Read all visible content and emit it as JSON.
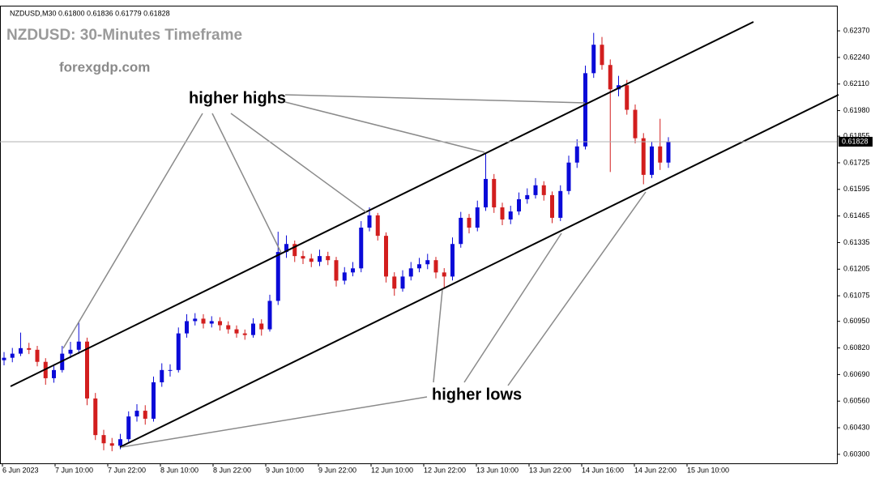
{
  "chart_data": {
    "type": "candlestick",
    "header": "NZDUSD,M30  0.61800 0.61836 0.61779 0.61828",
    "title": "NZDUSD: 30-Minutes Timeframe",
    "subtitle": "forexgdp.com",
    "annotations": [
      "higher highs",
      "higher lows"
    ],
    "up_color": "#0a0ad8",
    "down_color": "#d21e1e",
    "last_price": 0.61828,
    "ylim": [
      0.60256,
      0.62489
    ],
    "yticks": [
      {
        "value": 0.6237,
        "label": "0.62370"
      },
      {
        "value": 0.6224,
        "label": "0.62240"
      },
      {
        "value": 0.6211,
        "label": "0.62110"
      },
      {
        "value": 0.6198,
        "label": "0.61980"
      },
      0.61855,
      0.61725,
      0.61595,
      0.61465,
      0.61335,
      0.61205,
      0.61075,
      {
        "value": 0.6095,
        "label": "0.60950"
      },
      {
        "value": 0.6082,
        "label": "0.60820"
      },
      {
        "value": 0.6069,
        "label": "0.60690"
      },
      {
        "value": 0.6056,
        "label": "0.60560"
      },
      {
        "value": 0.6043,
        "label": "0.60430"
      },
      {
        "value": 0.603,
        "label": "0.60300"
      }
    ],
    "xtick_labels": [
      "6 Jun 2023",
      "7 Jun 10:00",
      "7 Jun 22:00",
      "8 Jun 10:00",
      "8 Jun 22:00",
      "9 Jun 10:00",
      "9 Jun 22:00",
      "12 Jun 10:00",
      "12 Jun 22:00",
      "13 Jun 10:00",
      "13 Jun 22:00",
      "14 Jun 16:00",
      "14 Jun 22:00",
      "15 Jun 10:00"
    ],
    "open": [
      0.6076,
      0.60772,
      0.60792,
      0.60819,
      0.60811,
      0.60752,
      0.60672,
      0.60712,
      0.60792,
      0.60811,
      0.60851,
      0.60573,
      0.60394,
      0.60354,
      0.60342,
      0.60374,
      0.60485,
      0.60513,
      0.60474,
      0.60652,
      0.60712,
      0.60712,
      0.60891,
      0.60951,
      0.60963,
      0.60939,
      0.60951,
      0.60931,
      0.60911,
      0.60891,
      0.60883,
      0.60939,
      0.60911,
      0.6105,
      0.61289,
      0.61328,
      0.61269,
      0.61257,
      0.61241,
      0.61269,
      0.61249,
      0.61149,
      0.61189,
      0.61209,
      0.61408,
      0.61468,
      0.61368,
      0.61169,
      0.6111,
      0.61169,
      0.61209,
      0.61229,
      0.61249,
      0.61189,
      0.61169,
      0.61328,
      0.61456,
      0.61408,
      0.61507,
      0.61646,
      0.61507,
      0.61448,
      0.61487,
      0.61547,
      0.61567,
      0.61615,
      0.61567,
      0.61456,
      0.61587,
      0.61726,
      0.61805,
      0.62163,
      0.62302,
      0.62203,
      0.62084,
      0.62104,
      0.61984,
      0.61845,
      0.61666,
      0.61805,
      0.61726
    ],
    "high": [
      0.608,
      0.6082,
      0.60895,
      0.60845,
      0.6083,
      0.6077,
      0.6074,
      0.6083,
      0.6085,
      0.60945,
      0.6087,
      0.606,
      0.6042,
      0.6038,
      0.604,
      0.6051,
      0.60545,
      0.6054,
      0.6068,
      0.60745,
      0.6074,
      0.6092,
      0.60985,
      0.6099,
      0.60985,
      0.60975,
      0.6097,
      0.6095,
      0.6093,
      0.6091,
      0.60965,
      0.6096,
      0.6108,
      0.61388,
      0.6137,
      0.61345,
      0.61295,
      0.6128,
      0.613,
      0.6129,
      0.61265,
      0.61215,
      0.6124,
      0.6144,
      0.61507,
      0.6148,
      0.61385,
      0.6119,
      0.612,
      0.6124,
      0.6126,
      0.6128,
      0.61265,
      0.6121,
      0.6136,
      0.61485,
      0.61475,
      0.6154,
      0.6177,
      0.6167,
      0.6153,
      0.61515,
      0.6158,
      0.616,
      0.6165,
      0.61635,
      0.61585,
      0.61615,
      0.6176,
      0.6184,
      0.622,
      0.6236,
      0.6234,
      0.6223,
      0.6215,
      0.6213,
      0.6201,
      0.6187,
      0.6183,
      0.6194,
      0.6185
    ],
    "low": [
      0.60735,
      0.6075,
      0.6078,
      0.6079,
      0.6073,
      0.6064,
      0.6065,
      0.607,
      0.6077,
      0.6079,
      0.6054,
      0.6037,
      0.6032,
      0.60315,
      0.60325,
      0.6036,
      0.6046,
      0.60445,
      0.6046,
      0.6063,
      0.6068,
      0.607,
      0.6087,
      0.6093,
      0.60915,
      0.6092,
      0.60905,
      0.6089,
      0.6087,
      0.6086,
      0.6087,
      0.6088,
      0.609,
      0.6103,
      0.6126,
      0.6124,
      0.6123,
      0.61215,
      0.6122,
      0.61225,
      0.6112,
      0.6113,
      0.6117,
      0.6119,
      0.6139,
      0.61345,
      0.6114,
      0.61075,
      0.61095,
      0.6115,
      0.6119,
      0.61205,
      0.6116,
      0.6111,
      0.6115,
      0.6131,
      0.6138,
      0.6139,
      0.6149,
      0.6148,
      0.6142,
      0.61425,
      0.6147,
      0.61525,
      0.6155,
      0.6154,
      0.6143,
      0.6144,
      0.6157,
      0.617,
      0.6179,
      0.6214,
      0.6218,
      0.6168,
      0.6205,
      0.6196,
      0.6182,
      0.6162,
      0.6165,
      0.6169,
      0.617
    ],
    "close": [
      0.60772,
      0.60792,
      0.60819,
      0.60811,
      0.60752,
      0.60672,
      0.60712,
      0.60792,
      0.60811,
      0.60851,
      0.60573,
      0.60394,
      0.60354,
      0.60342,
      0.60374,
      0.60485,
      0.60513,
      0.60474,
      0.60652,
      0.60712,
      0.60712,
      0.60891,
      0.60951,
      0.60963,
      0.60939,
      0.60951,
      0.60931,
      0.60911,
      0.60891,
      0.60883,
      0.60939,
      0.60911,
      0.6105,
      0.61289,
      0.61328,
      0.61269,
      0.61257,
      0.61241,
      0.61269,
      0.61249,
      0.61149,
      0.61189,
      0.61209,
      0.61408,
      0.61468,
      0.61368,
      0.61169,
      0.6111,
      0.61169,
      0.61209,
      0.61229,
      0.61249,
      0.61189,
      0.61169,
      0.61328,
      0.61456,
      0.61408,
      0.61507,
      0.61646,
      0.61507,
      0.61448,
      0.61487,
      0.61547,
      0.61567,
      0.61615,
      0.61567,
      0.61456,
      0.61587,
      0.61726,
      0.61805,
      0.62163,
      0.62302,
      0.62203,
      0.62084,
      0.62104,
      0.61984,
      0.61845,
      0.61666,
      0.61805,
      0.61726,
      0.61828
    ]
  }
}
